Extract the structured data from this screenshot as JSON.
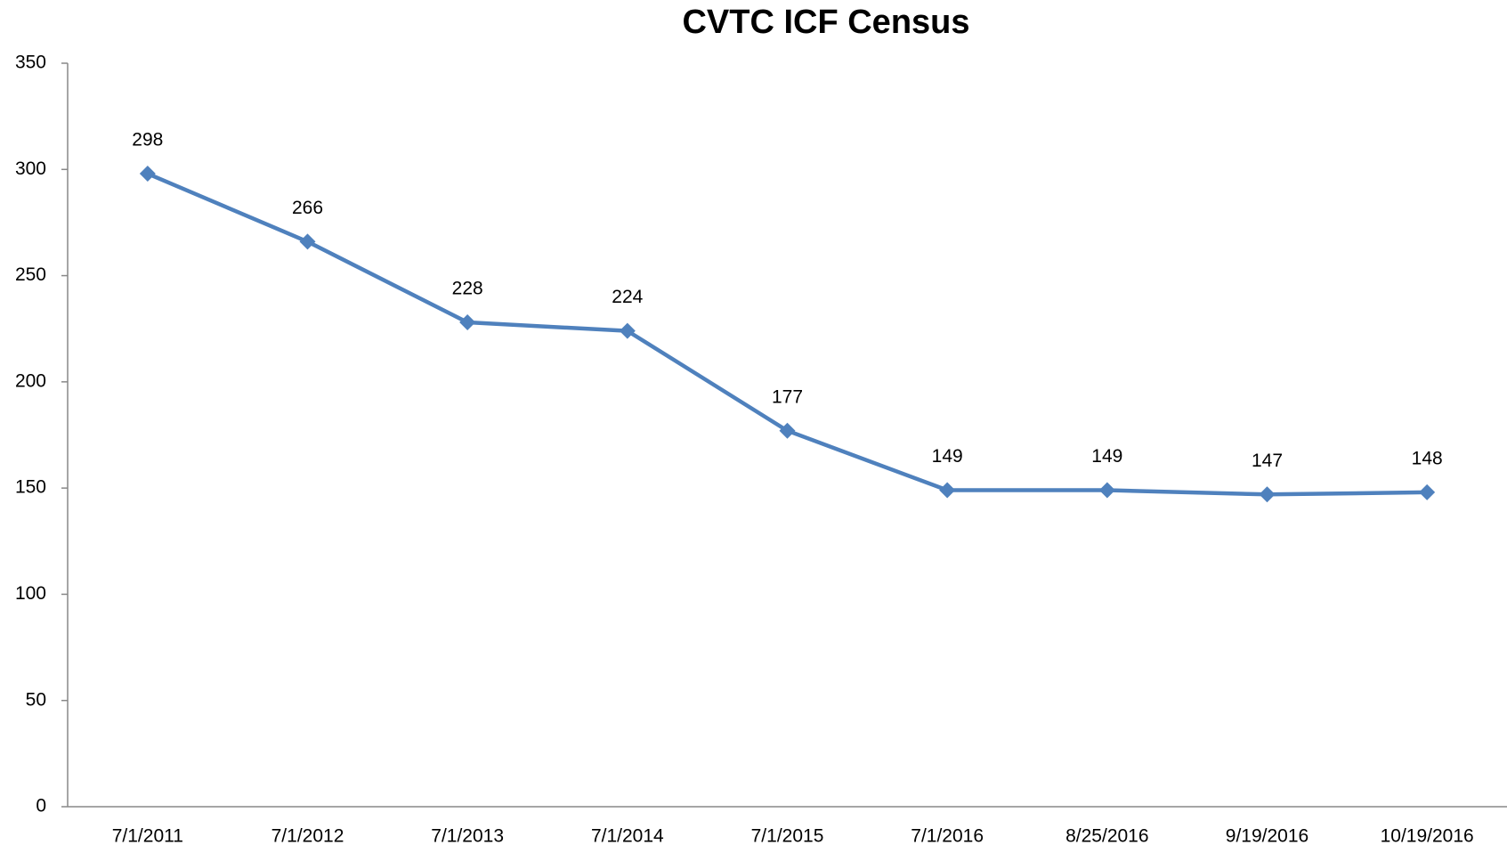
{
  "chart_data": {
    "type": "line",
    "title": "CVTC ICF Census",
    "categories": [
      "7/1/2011",
      "7/1/2012",
      "7/1/2013",
      "7/1/2014",
      "7/1/2015",
      "7/1/2016",
      "8/25/2016",
      "9/19/2016",
      "10/19/2016"
    ],
    "values": [
      298,
      266,
      228,
      224,
      177,
      149,
      149,
      147,
      148
    ],
    "color": "#4f81bd",
    "ylim": [
      0,
      350
    ],
    "yticks": [
      0,
      50,
      100,
      150,
      200,
      250,
      300,
      350
    ],
    "grid": false
  }
}
